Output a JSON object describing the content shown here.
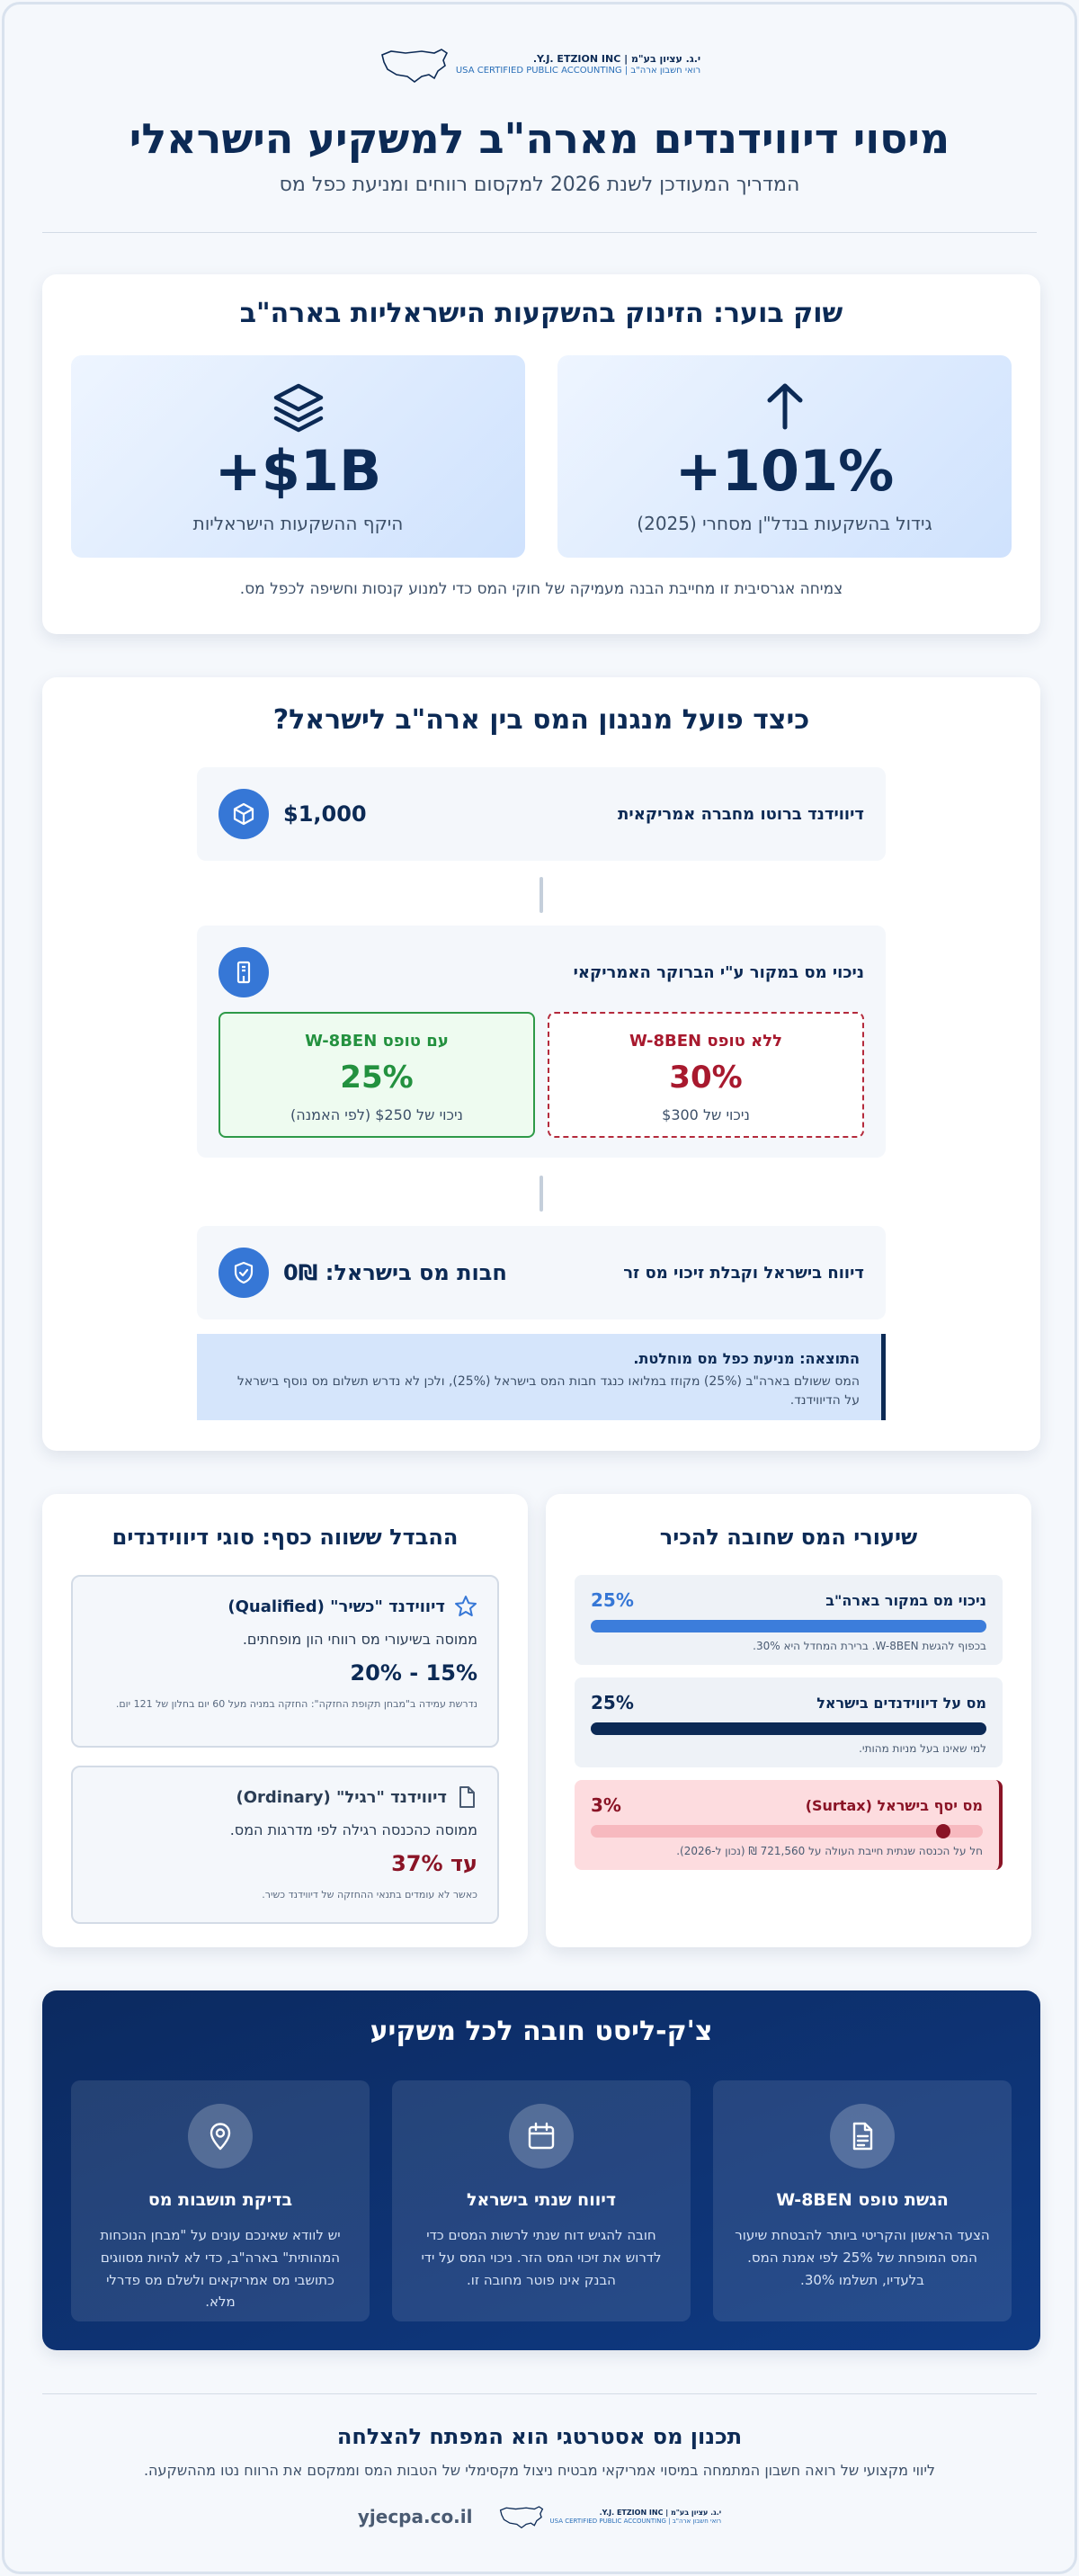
{
  "logo": {
    "line1": "י.ג. עציון בע\"מ | Y.J. ETZION INC.",
    "line2": "רואי חשבון ארה\"ב | USA CERTIFIED PUBLIC ACCOUNTING"
  },
  "header": {
    "title": "מיסוי דיווידנדים מארה\"ב למשקיע הישראלי",
    "subtitle": "המדריך המעודכן לשנת 2026 למקסום רווחים ומניעת כפל מס"
  },
  "market": {
    "title": "שוק בוער: הזינוק בהשקעות הישראליות בארה\"ב",
    "growth_value": "+101%",
    "growth_label": "גידול בהשקעות בנדל\"ן מסחרי (2025)",
    "volume_value": "+$1B",
    "volume_label": "היקף ההשקעות הישראליות",
    "note": "צמיחה אגרסיבית זו מחייבת הבנה מעמיקה של חוקי המס כדי למנוע קנסות וחשיפה לכפל מס."
  },
  "mechanism": {
    "title": "כיצד פועל מנגנון המס בין ארה\"ב לישראל?",
    "step1_text": "דיווידנד ברוטו מחברה אמריקאית",
    "step1_amount": "$1,000",
    "step2_text": "ניכוי מס במקור ע\"י הברוקר האמריקאי",
    "without_title": "ללא טופס W-8BEN",
    "without_rate": "30%",
    "without_note": "ניכוי של $300",
    "with_title": "עם טופס W-8BEN",
    "with_rate": "25%",
    "with_note": "ניכוי של $250 (לפי האמנה)",
    "step3_text": "דיווח בישראל וקבלת זיכוי מס זר",
    "step3_amount": "חבות מס בישראל: 0₪",
    "result_title": "התוצאה: מניעת כפל מס מוחלטת.",
    "result_text": "המס ששולם בארה\"ב (25%) מקוזז במלואו כנגד חבות המס בישראל (25%), ולכן לא נדרש תשלום מס נוסף בישראל על הדיווידנד."
  },
  "rates": {
    "title": "שיעורי המס שחובה להכיר",
    "items": [
      {
        "name": "ניכוי מס במקור בארה\"ב",
        "value": "25%",
        "fraction": 1.0,
        "note": "בכפוף להגשת W-8BEN. ברירת המחדל היא 30%."
      },
      {
        "name": "מס על דיווידנדים בישראל",
        "value": "25%",
        "fraction": 1.0,
        "note": "למי שאינו בעל מניות מהותי."
      },
      {
        "name": "מס יסף בישראל (Surtax)",
        "value": "3%",
        "fraction": 0.12,
        "note": "חל על הכנסה שנתית חייבת העולה על 721,560 ₪ (נכון ל-2026)."
      }
    ]
  },
  "types": {
    "title": "ההבדל ששווה כסף: סוגי דיווידנדים",
    "qualified_name": "דיווידנד \"כשיר\" (Qualified)",
    "qualified_desc": "ממוסה בשיעורי מס רווחי הון מופחתים.",
    "qualified_rate": "15% - 20%",
    "qualified_note": "נדרשת עמידה ב\"מבחן תקופת החזקה\": החזקה במניה מעל 60 יום בחלון של 121 יום.",
    "ordinary_name": "דיווידנד \"רגיל\" (Ordinary)",
    "ordinary_desc": "ממוסה כהכנסה רגילה לפי מדרגות המס.",
    "ordinary_rate": "עד 37%",
    "ordinary_note": "כאשר לא עומדים בתנאי ההחזקה של דיווידנד כשיר."
  },
  "checklist": {
    "title": "צ'ק-ליסט חובה לכל משקיע",
    "items": [
      {
        "title": "הגשת טופס W-8BEN",
        "text": "הצעד הראשון והקריטי ביותר להבטחת שיעור המס המופחת של 25% לפי אמנת המס. בלעדיו, תשלמו 30%."
      },
      {
        "title": "דיווח שנתי בישראל",
        "text": "חובה להגיש דוח שנתי לרשות המסים כדי לדרוש את זיכוי המס הזר. ניכוי המס על ידי הבנק אינו פוטר מחובה זו."
      },
      {
        "title": "בדיקת תושבות מס",
        "text": "יש לוודא שאינכם עונים על \"מבחן הנוכחות המהותית\" בארה\"ב, כדי לא להיות מסווגים כתושבי מס אמריקאים ולשלם מס פדרלי מלא."
      }
    ]
  },
  "footer": {
    "title": "תכנון מס אסטרטגי הוא המפתח להצלחה",
    "text": "ליווי מקצועי של רואה חשבון המתמחה במיסוי אמריקאי מבטיח ניצול מקסימלי של הטבות המס וממקסם את הרווח נטו מההשקעה.",
    "url": "yjecpa.co.il"
  }
}
